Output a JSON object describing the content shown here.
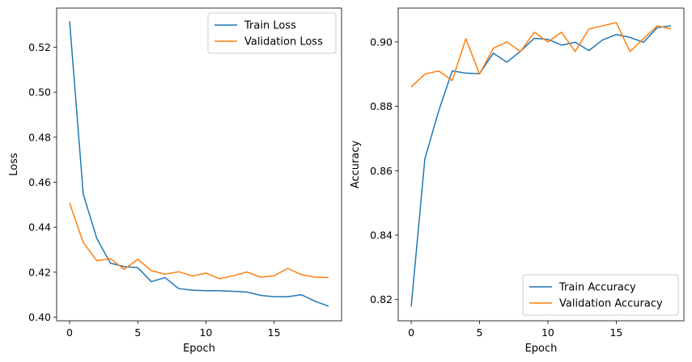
{
  "chart_data": [
    {
      "type": "line",
      "xlabel": "Epoch",
      "ylabel": "Loss",
      "xlim": [
        -0.95,
        19.95
      ],
      "ylim": [
        0.3984,
        0.5374
      ],
      "xticks": [
        0,
        5,
        10,
        15
      ],
      "yticks": [
        0.4,
        0.42,
        0.44,
        0.46,
        0.48,
        0.5,
        0.52
      ],
      "ytick_labels": [
        "0.40",
        "0.42",
        "0.44",
        "0.46",
        "0.48",
        "0.50",
        "0.52"
      ],
      "legend_position": "top-right",
      "x": [
        0,
        1,
        2,
        3,
        4,
        5,
        6,
        7,
        8,
        9,
        10,
        11,
        12,
        13,
        14,
        15,
        16,
        17,
        18,
        19
      ],
      "series": [
        {
          "name": "Train Loss",
          "color": "#1f77b4",
          "values": [
            0.5316,
            0.4547,
            0.4349,
            0.424,
            0.4225,
            0.422,
            0.4158,
            0.4176,
            0.4127,
            0.412,
            0.4118,
            0.4118,
            0.4115,
            0.4112,
            0.4097,
            0.4091,
            0.4091,
            0.41,
            0.4071,
            0.4049
          ]
        },
        {
          "name": "Validation Loss",
          "color": "#ff7f0e",
          "values": [
            0.4507,
            0.4332,
            0.4251,
            0.426,
            0.4213,
            0.4257,
            0.4207,
            0.4191,
            0.4202,
            0.4183,
            0.4196,
            0.4171,
            0.4184,
            0.4201,
            0.4178,
            0.4184,
            0.4217,
            0.4189,
            0.4178,
            0.4176
          ]
        }
      ]
    },
    {
      "type": "line",
      "xlabel": "Epoch",
      "ylabel": "Accuracy",
      "xlim": [
        -0.95,
        19.95
      ],
      "ylim": [
        0.8134,
        0.9105
      ],
      "xticks": [
        0,
        5,
        10,
        15
      ],
      "yticks": [
        0.82,
        0.84,
        0.86,
        0.88,
        0.9
      ],
      "ytick_labels": [
        "0.82",
        "0.84",
        "0.86",
        "0.88",
        "0.90"
      ],
      "legend_position": "bottom-right",
      "x": [
        0,
        1,
        2,
        3,
        4,
        5,
        6,
        7,
        8,
        9,
        10,
        11,
        12,
        13,
        14,
        15,
        16,
        17,
        18,
        19
      ],
      "series": [
        {
          "name": "Train Accuracy",
          "color": "#1f77b4",
          "values": [
            0.8178,
            0.8637,
            0.8784,
            0.891,
            0.8903,
            0.8901,
            0.8965,
            0.8937,
            0.8971,
            0.9011,
            0.9008,
            0.899,
            0.8999,
            0.8973,
            0.9006,
            0.9023,
            0.9014,
            0.8999,
            0.9044,
            0.905
          ]
        },
        {
          "name": "Validation Accuracy",
          "color": "#ff7f0e",
          "values": [
            0.886,
            0.89,
            0.891,
            0.888,
            0.901,
            0.89,
            0.898,
            0.9,
            0.897,
            0.903,
            0.9,
            0.903,
            0.897,
            0.904,
            0.905,
            0.906,
            0.897,
            0.901,
            0.905,
            0.904
          ]
        }
      ]
    }
  ]
}
